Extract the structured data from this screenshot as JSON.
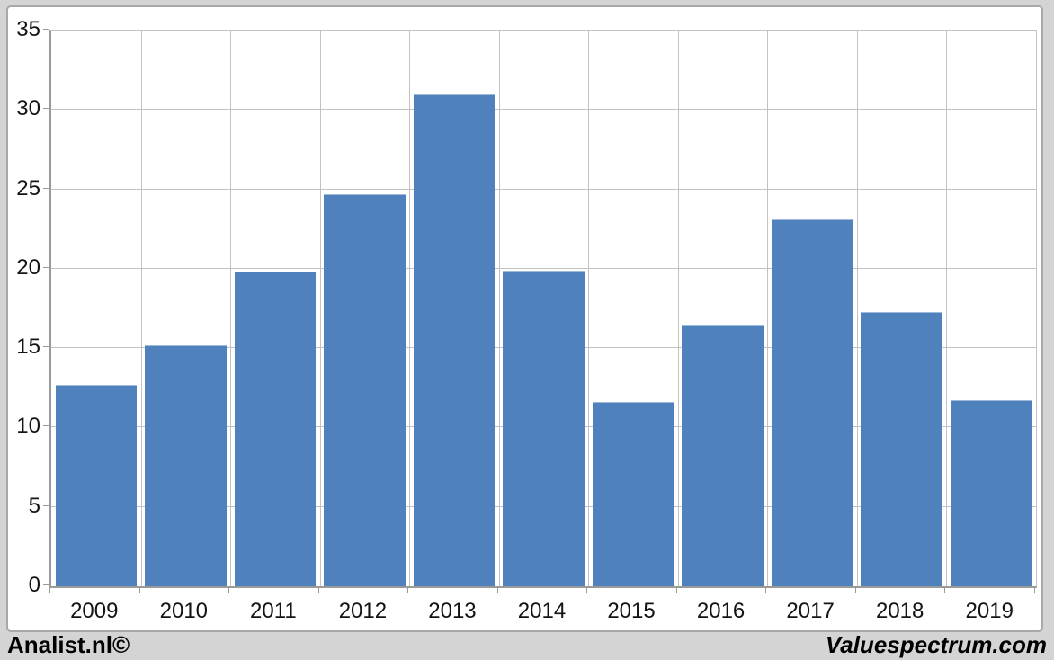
{
  "chart_data": {
    "type": "bar",
    "title": "",
    "xlabel": "",
    "ylabel": "",
    "categories": [
      "2009",
      "2010",
      "2011",
      "2012",
      "2013",
      "2014",
      "2015",
      "2016",
      "2017",
      "2018",
      "2019"
    ],
    "values": [
      12.7,
      15.2,
      19.8,
      24.7,
      31.0,
      19.9,
      11.6,
      16.5,
      23.1,
      17.3,
      11.7
    ],
    "ylim": [
      0,
      35
    ],
    "yticks": [
      0,
      5,
      10,
      15,
      20,
      25,
      30,
      35
    ],
    "grid": true,
    "legend": "none",
    "bar_color": "#4f81bd"
  },
  "colors": {
    "bar": "#4f81bd",
    "background": "#d4d4d4",
    "plot_background": "#ffffff",
    "gridline": "#c2c2c2",
    "axis": "#9a9a9a",
    "text": "#000000"
  },
  "footer": {
    "left_text": "Analist.nl©",
    "right_text": "Valuespectrum.com"
  }
}
